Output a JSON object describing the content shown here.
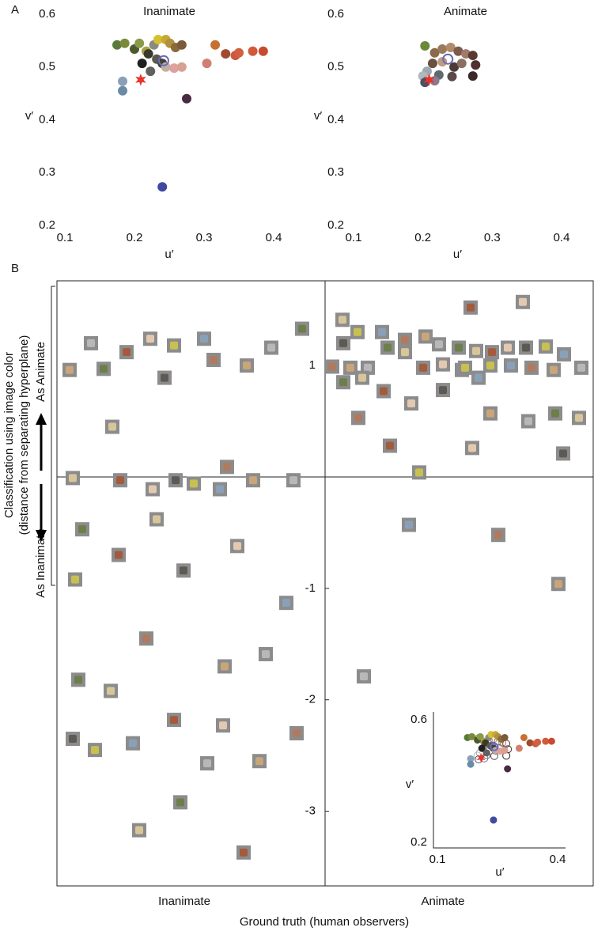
{
  "chart_data": [
    {
      "type": "scatter",
      "panel": "A",
      "title": "Inanimate",
      "xlabel": "u′",
      "ylabel": "v′",
      "xlim": [
        0.1,
        0.4
      ],
      "ylim": [
        0.2,
        0.6
      ],
      "xticks": [
        0.1,
        0.2,
        0.3,
        0.4
      ],
      "yticks": [
        0.2,
        0.3,
        0.4,
        0.5,
        0.6
      ],
      "series": [
        {
          "marker": "circle",
          "x": [
            0.175,
            0.186,
            0.2,
            0.207,
            0.217,
            0.228,
            0.234,
            0.245,
            0.251,
            0.259,
            0.268,
            0.22,
            0.232,
            0.24,
            0.211,
            0.223,
            0.245,
            0.257,
            0.268,
            0.304,
            0.316,
            0.331,
            0.345,
            0.35,
            0.37,
            0.385,
            0.183,
            0.183,
            0.275,
            0.24
          ],
          "y": [
            0.542,
            0.545,
            0.534,
            0.545,
            0.53,
            0.542,
            0.552,
            0.552,
            0.545,
            0.537,
            0.542,
            0.525,
            0.515,
            0.507,
            0.507,
            0.492,
            0.5,
            0.498,
            0.5,
            0.507,
            0.542,
            0.525,
            0.522,
            0.527,
            0.53,
            0.53,
            0.473,
            0.455,
            0.44,
            0.273
          ],
          "colors": [
            "#5a7a3a",
            "#7a8a3a",
            "#4a5a2a",
            "#8a9a4a",
            "#a8a040",
            "#8a8a80",
            "#d4c030",
            "#c8a830",
            "#b09040",
            "#8a6a3a",
            "#7a5a3a",
            "#3a3a2a",
            "#5a5a50",
            "#404040",
            "#202020",
            "#606060",
            "#c0b0a0",
            "#e0a0a0",
            "#d8a090",
            "#d08070",
            "#c87030",
            "#a04a30",
            "#c85a40",
            "#d06040",
            "#d05a3a",
            "#c84a30",
            "#8aa0b8",
            "#6a8aa8",
            "#4a2a40",
            "#4048a0"
          ]
        },
        {
          "marker": "star",
          "x": [
            0.209
          ],
          "y": [
            0.476
          ],
          "colors": [
            "#e8332b"
          ]
        },
        {
          "marker": "ring",
          "x": [
            0.242
          ],
          "y": [
            0.512
          ],
          "colors": [
            "#6b6bb5"
          ]
        }
      ]
    },
    {
      "type": "scatter",
      "title": "Animate",
      "xlabel": "u′",
      "ylabel": "v′",
      "xlim": [
        0.1,
        0.4
      ],
      "ylim": [
        0.2,
        0.6
      ],
      "xticks": [
        0.1,
        0.2,
        0.3,
        0.4
      ],
      "yticks": [
        0.2,
        0.3,
        0.4,
        0.5,
        0.6
      ],
      "series": [
        {
          "marker": "circle",
          "x": [
            0.203,
            0.217,
            0.228,
            0.24,
            0.251,
            0.262,
            0.272,
            0.214,
            0.228,
            0.245,
            0.256,
            0.276,
            0.206,
            0.223,
            0.242,
            0.2,
            0.203,
            0.217,
            0.272
          ],
          "y": [
            0.54,
            0.527,
            0.534,
            0.537,
            0.53,
            0.525,
            0.522,
            0.507,
            0.51,
            0.5,
            0.507,
            0.504,
            0.492,
            0.485,
            0.482,
            0.483,
            0.471,
            0.474,
            0.483
          ],
          "colors": [
            "#6a8a3a",
            "#8a6a4a",
            "#9a7a5a",
            "#b08a6a",
            "#7a5a4a",
            "#a07a6a",
            "#5a3a30",
            "#6a5040",
            "#c09a80",
            "#4a3a3a",
            "#8a7060",
            "#503030",
            "#a0a8b0",
            "#606870",
            "#5a4a4a",
            "#b0b8c0",
            "#505060",
            "#8a7a90",
            "#3a2a2a"
          ]
        },
        {
          "marker": "star",
          "x": [
            0.209
          ],
          "y": [
            0.476
          ],
          "colors": [
            "#e8332b"
          ]
        },
        {
          "marker": "ring",
          "x": [
            0.236
          ],
          "y": [
            0.515
          ],
          "colors": [
            "#6b6bb5"
          ]
        }
      ]
    },
    {
      "type": "strip",
      "panel": "B",
      "ylabel": [
        "Classification using image color",
        "(distance from separating hyperplane)"
      ],
      "annotations": [
        "As Animate",
        "As Inanimate"
      ],
      "xlabel": "Ground truth (human observers)",
      "categories": [
        "Inanimate",
        "Animate"
      ],
      "ylim": [
        -3.67,
        1.76
      ],
      "yticks": [
        1,
        -1,
        -2,
        -3
      ],
      "values": [
        [
          0.96,
          1.2,
          0.97,
          0.45,
          1.12,
          1.24,
          0.89,
          1.18,
          1.24,
          1.05,
          1.0,
          1.16,
          1.33,
          -0.01,
          -0.03,
          -0.11,
          -0.03,
          -0.06,
          -0.11,
          0.09,
          -0.03,
          -0.03,
          -0.47,
          -0.38,
          -0.7,
          -0.62,
          -0.84,
          -0.92,
          -1.13,
          -1.45,
          -1.7,
          -1.59,
          -1.82,
          -1.92,
          -2.18,
          -2.23,
          -2.35,
          -2.45,
          -2.39,
          -2.3,
          -2.55,
          -2.57,
          -2.92,
          -3.17,
          -3.37
        ],
        [
          1.41,
          1.52,
          1.57,
          1.2,
          1.3,
          1.3,
          1.23,
          1.26,
          1.19,
          1.16,
          1.13,
          1.12,
          1.16,
          1.16,
          1.17,
          1.1,
          0.99,
          0.98,
          0.98,
          1.16,
          1.12,
          0.98,
          1.01,
          0.96,
          1.0,
          1.0,
          0.98,
          0.96,
          0.98,
          0.85,
          0.89,
          0.77,
          0.66,
          0.78,
          0.98,
          0.89,
          0.53,
          0.57,
          0.5,
          0.57,
          0.53,
          0.28,
          0.26,
          0.21,
          0.04,
          -0.43,
          -0.52,
          -0.96,
          -1.79
        ]
      ]
    },
    {
      "type": "inset",
      "xlabel": "u′",
      "ylabel": "v′",
      "xlim": [
        0.1,
        0.4
      ],
      "ylim": [
        0.2,
        0.6
      ],
      "xticks": [
        0.1,
        0.4
      ],
      "yticks": [
        0.2,
        0.6
      ]
    }
  ]
}
